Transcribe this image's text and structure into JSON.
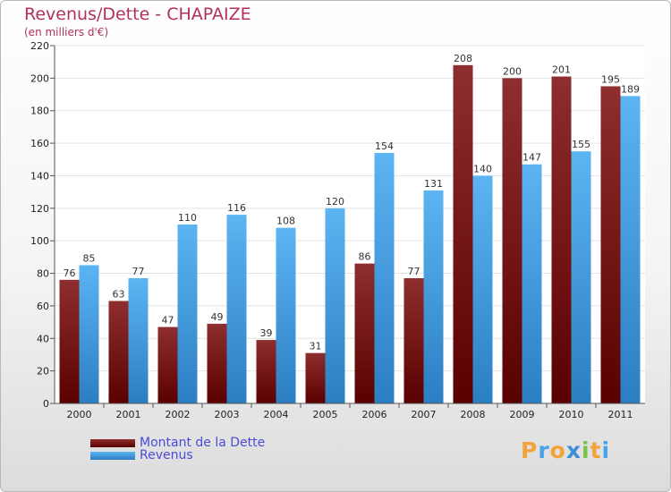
{
  "title": "Revenus/Dette - CHAPAIZE",
  "subtitle": "(en milliers d'€)",
  "logo_text": "Proxiti",
  "colors": {
    "debt": "#7a1010",
    "revenue": "#4aa3e8",
    "title": "#b0325a",
    "legend_text": "#4b4bd8"
  },
  "chart_data": {
    "type": "bar",
    "categories": [
      "2000",
      "2001",
      "2002",
      "2003",
      "2004",
      "2005",
      "2006",
      "2007",
      "2008",
      "2009",
      "2010",
      "2011"
    ],
    "series": [
      {
        "name": "Montant de la Dette",
        "values": [
          76,
          63,
          47,
          49,
          39,
          31,
          86,
          77,
          208,
          200,
          201,
          195
        ]
      },
      {
        "name": "Revenus",
        "values": [
          85,
          77,
          110,
          116,
          108,
          120,
          154,
          131,
          140,
          147,
          155,
          189
        ]
      }
    ],
    "ylim": [
      0,
      220
    ],
    "yticks": [
      0,
      20,
      40,
      60,
      80,
      100,
      120,
      140,
      160,
      180,
      200,
      220
    ],
    "grid": true,
    "legend": "bottom-left"
  }
}
